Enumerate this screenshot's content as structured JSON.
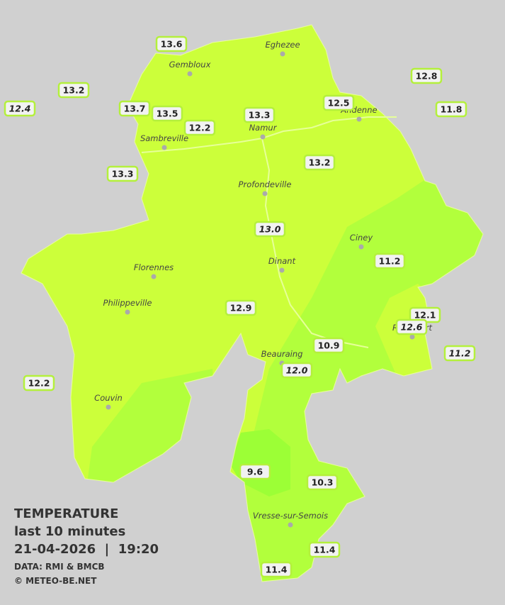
{
  "legend": {
    "title": "TEMPERATURE",
    "subtitle": "last 10 minutes",
    "datetime": "21-04-2026  |  19:20",
    "source": "DATA: RMI & BMCB",
    "credit": "© METEO-BE.NET"
  },
  "towns": [
    "Eghezee",
    "Gembloux",
    "Andenne",
    "Namur",
    "Sambreville",
    "Profondeville",
    "Ciney",
    "Dinant",
    "Florennes",
    "Philippeville",
    "Rochefort",
    "Beauraing",
    "Couvin",
    "Vresse-sur-Semois"
  ],
  "stations": {
    "values": [
      13.6,
      13.2,
      12.4,
      13.7,
      13.5,
      12.2,
      13.3,
      12.5,
      12.8,
      11.8,
      13.3,
      13.2,
      13.0,
      11.2,
      12.9,
      12.1,
      12.6,
      10.9,
      11.2,
      12.0,
      12.2,
      9.6,
      10.3,
      11.4,
      11.4
    ],
    "value_labels": [
      "13.6",
      "13.2",
      "12.4",
      "13.7",
      "13.5",
      "12.2",
      "13.3",
      "12.5",
      "12.8",
      "11.8",
      "13.3",
      "13.2",
      "13.0",
      "11.2",
      "12.9",
      "12.1",
      "12.6",
      "10.9",
      "11.2",
      "12.0",
      "12.2",
      "9.6",
      "10.3",
      "11.4",
      "11.4"
    ],
    "italic": [
      false,
      false,
      true,
      false,
      false,
      false,
      false,
      false,
      false,
      false,
      false,
      false,
      true,
      false,
      false,
      false,
      true,
      false,
      true,
      true,
      false,
      false,
      false,
      false,
      false
    ]
  }
}
